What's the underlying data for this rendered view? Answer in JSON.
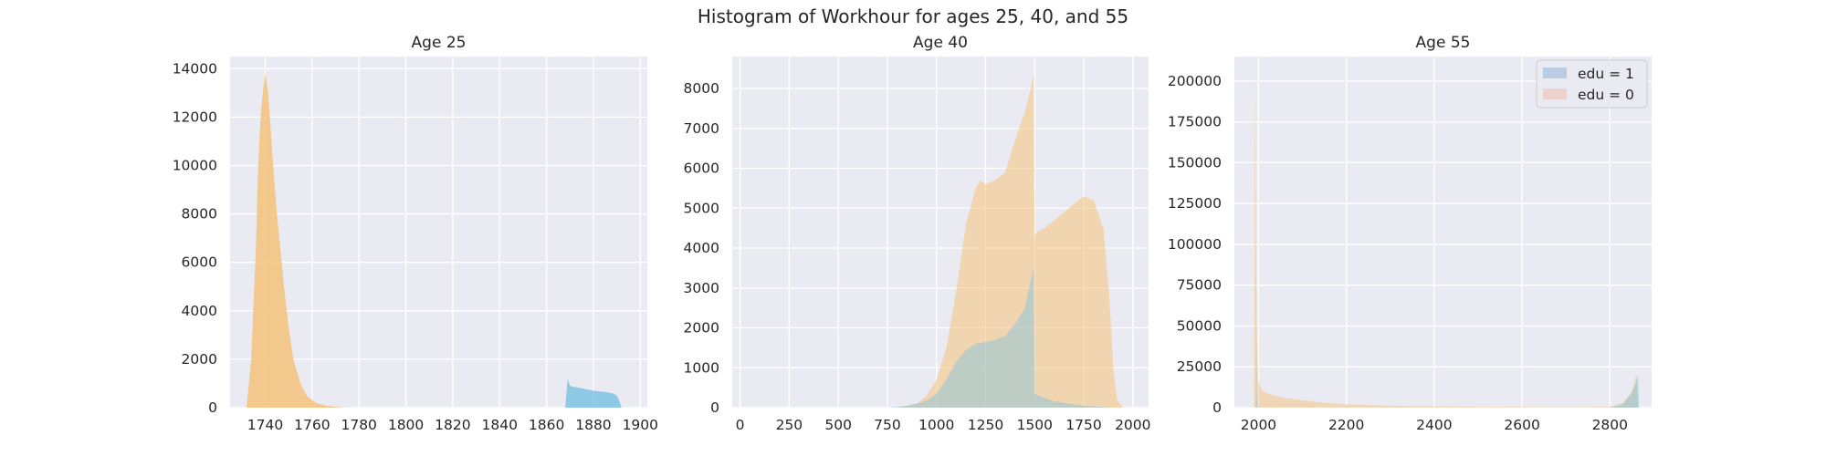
{
  "figure_title": "Histogram of Workhour for ages 25, 40, and 55",
  "colors": {
    "background": "#eaeaf2",
    "grid": "#ffffff",
    "edu1_main": "#7ec4e3",
    "edu0_main": "#f5c27a",
    "edu1_legend": "#b8cce4",
    "edu0_legend": "#ecd2cb"
  },
  "legend": {
    "placement": "top-right",
    "entries": [
      {
        "label": "edu = 1",
        "color_key": "edu1_legend"
      },
      {
        "label": "edu = 0",
        "color_key": "edu0_legend"
      }
    ]
  },
  "chart_data": [
    {
      "type": "histogram",
      "title": "Age 25",
      "xlim": [
        1725,
        1903
      ],
      "ylim": [
        0,
        14500
      ],
      "xticks": [
        1740,
        1760,
        1780,
        1800,
        1820,
        1840,
        1860,
        1880,
        1900
      ],
      "yticks": [
        0,
        2000,
        4000,
        6000,
        8000,
        10000,
        12000,
        14000
      ],
      "series": [
        {
          "name": "edu = 0",
          "color_key": "edu0_main",
          "opacity": 0.85,
          "x": [
            1732,
            1734,
            1736,
            1737,
            1738,
            1739,
            1740,
            1741,
            1742,
            1743,
            1745,
            1748,
            1750,
            1752,
            1755,
            1758,
            1762,
            1766,
            1770,
            1775
          ],
          "y": [
            0,
            2000,
            6500,
            10000,
            12000,
            13000,
            13800,
            13200,
            12000,
            10500,
            8000,
            5000,
            3300,
            2000,
            1000,
            450,
            180,
            80,
            30,
            0
          ]
        },
        {
          "name": "edu = 1",
          "color_key": "edu1_main",
          "opacity": 0.85,
          "x": [
            1868,
            1869,
            1870,
            1872,
            1875,
            1880,
            1885,
            1888,
            1890,
            1891,
            1892
          ],
          "y": [
            0,
            1200,
            900,
            850,
            800,
            700,
            650,
            600,
            500,
            300,
            0
          ]
        }
      ]
    },
    {
      "type": "histogram",
      "title": "Age 40",
      "xlim": [
        -40,
        2080
      ],
      "ylim": [
        0,
        8800
      ],
      "xticks": [
        0,
        250,
        500,
        750,
        1000,
        1250,
        1500,
        1750,
        2000
      ],
      "yticks": [
        0,
        1000,
        2000,
        3000,
        4000,
        5000,
        6000,
        7000,
        8000
      ],
      "series": [
        {
          "name": "edu = 0",
          "color_key": "edu0_main",
          "opacity": 0.55,
          "x": [
            800,
            900,
            950,
            1000,
            1050,
            1100,
            1150,
            1200,
            1225,
            1250,
            1300,
            1350,
            1400,
            1450,
            1480,
            1495,
            1500,
            1510,
            1550,
            1600,
            1650,
            1700,
            1750,
            1800,
            1850,
            1880,
            1900,
            1920,
            1950
          ],
          "y": [
            0,
            100,
            300,
            700,
            1500,
            2900,
            4600,
            5500,
            5700,
            5600,
            5700,
            5900,
            6700,
            7400,
            8000,
            8400,
            4300,
            4400,
            4500,
            4700,
            4900,
            5100,
            5300,
            5200,
            4500,
            2800,
            1000,
            200,
            0
          ]
        },
        {
          "name": "edu = 1",
          "color_key": "edu1_main",
          "opacity": 0.45,
          "x": [
            750,
            800,
            850,
            900,
            950,
            1000,
            1050,
            1100,
            1150,
            1200,
            1250,
            1300,
            1350,
            1400,
            1450,
            1480,
            1495,
            1500,
            1550,
            1600,
            1700,
            1800,
            1900
          ],
          "y": [
            0,
            20,
            50,
            100,
            180,
            350,
            700,
            1150,
            1450,
            1600,
            1650,
            1700,
            1800,
            2100,
            2500,
            3200,
            3500,
            350,
            250,
            160,
            80,
            30,
            0
          ]
        }
      ]
    },
    {
      "type": "histogram",
      "title": "Age 55",
      "xlim": [
        1945,
        2895
      ],
      "ylim": [
        0,
        215000
      ],
      "xticks": [
        2000,
        2200,
        2400,
        2600,
        2800
      ],
      "yticks": [
        0,
        25000,
        50000,
        75000,
        100000,
        125000,
        150000,
        175000,
        200000
      ],
      "series": [
        {
          "name": "edu = 0",
          "color_key": "edu0_main",
          "opacity": 0.5,
          "x": [
            1990,
            1992,
            1994,
            1996,
            1998,
            2000,
            2010,
            2030,
            2060,
            2100,
            2150,
            2200,
            2300,
            2400,
            2500,
            2600,
            2700,
            2800,
            2830,
            2850,
            2860,
            2865
          ],
          "y": [
            0,
            205000,
            100000,
            50000,
            25000,
            15000,
            10000,
            8000,
            6000,
            4500,
            3000,
            2000,
            1200,
            800,
            500,
            350,
            300,
            400,
            3000,
            10000,
            20000,
            0
          ]
        },
        {
          "name": "edu = 1",
          "color_key": "edu1_main",
          "opacity": 0.5,
          "x": [
            1994,
            1995,
            1996,
            1997,
            1998,
            2000,
            2800,
            2830,
            2850,
            2860,
            2864,
            2866
          ],
          "y": [
            0,
            40000,
            10000,
            3000,
            0,
            0,
            0,
            2000,
            9000,
            16000,
            20000,
            0
          ]
        }
      ]
    }
  ]
}
